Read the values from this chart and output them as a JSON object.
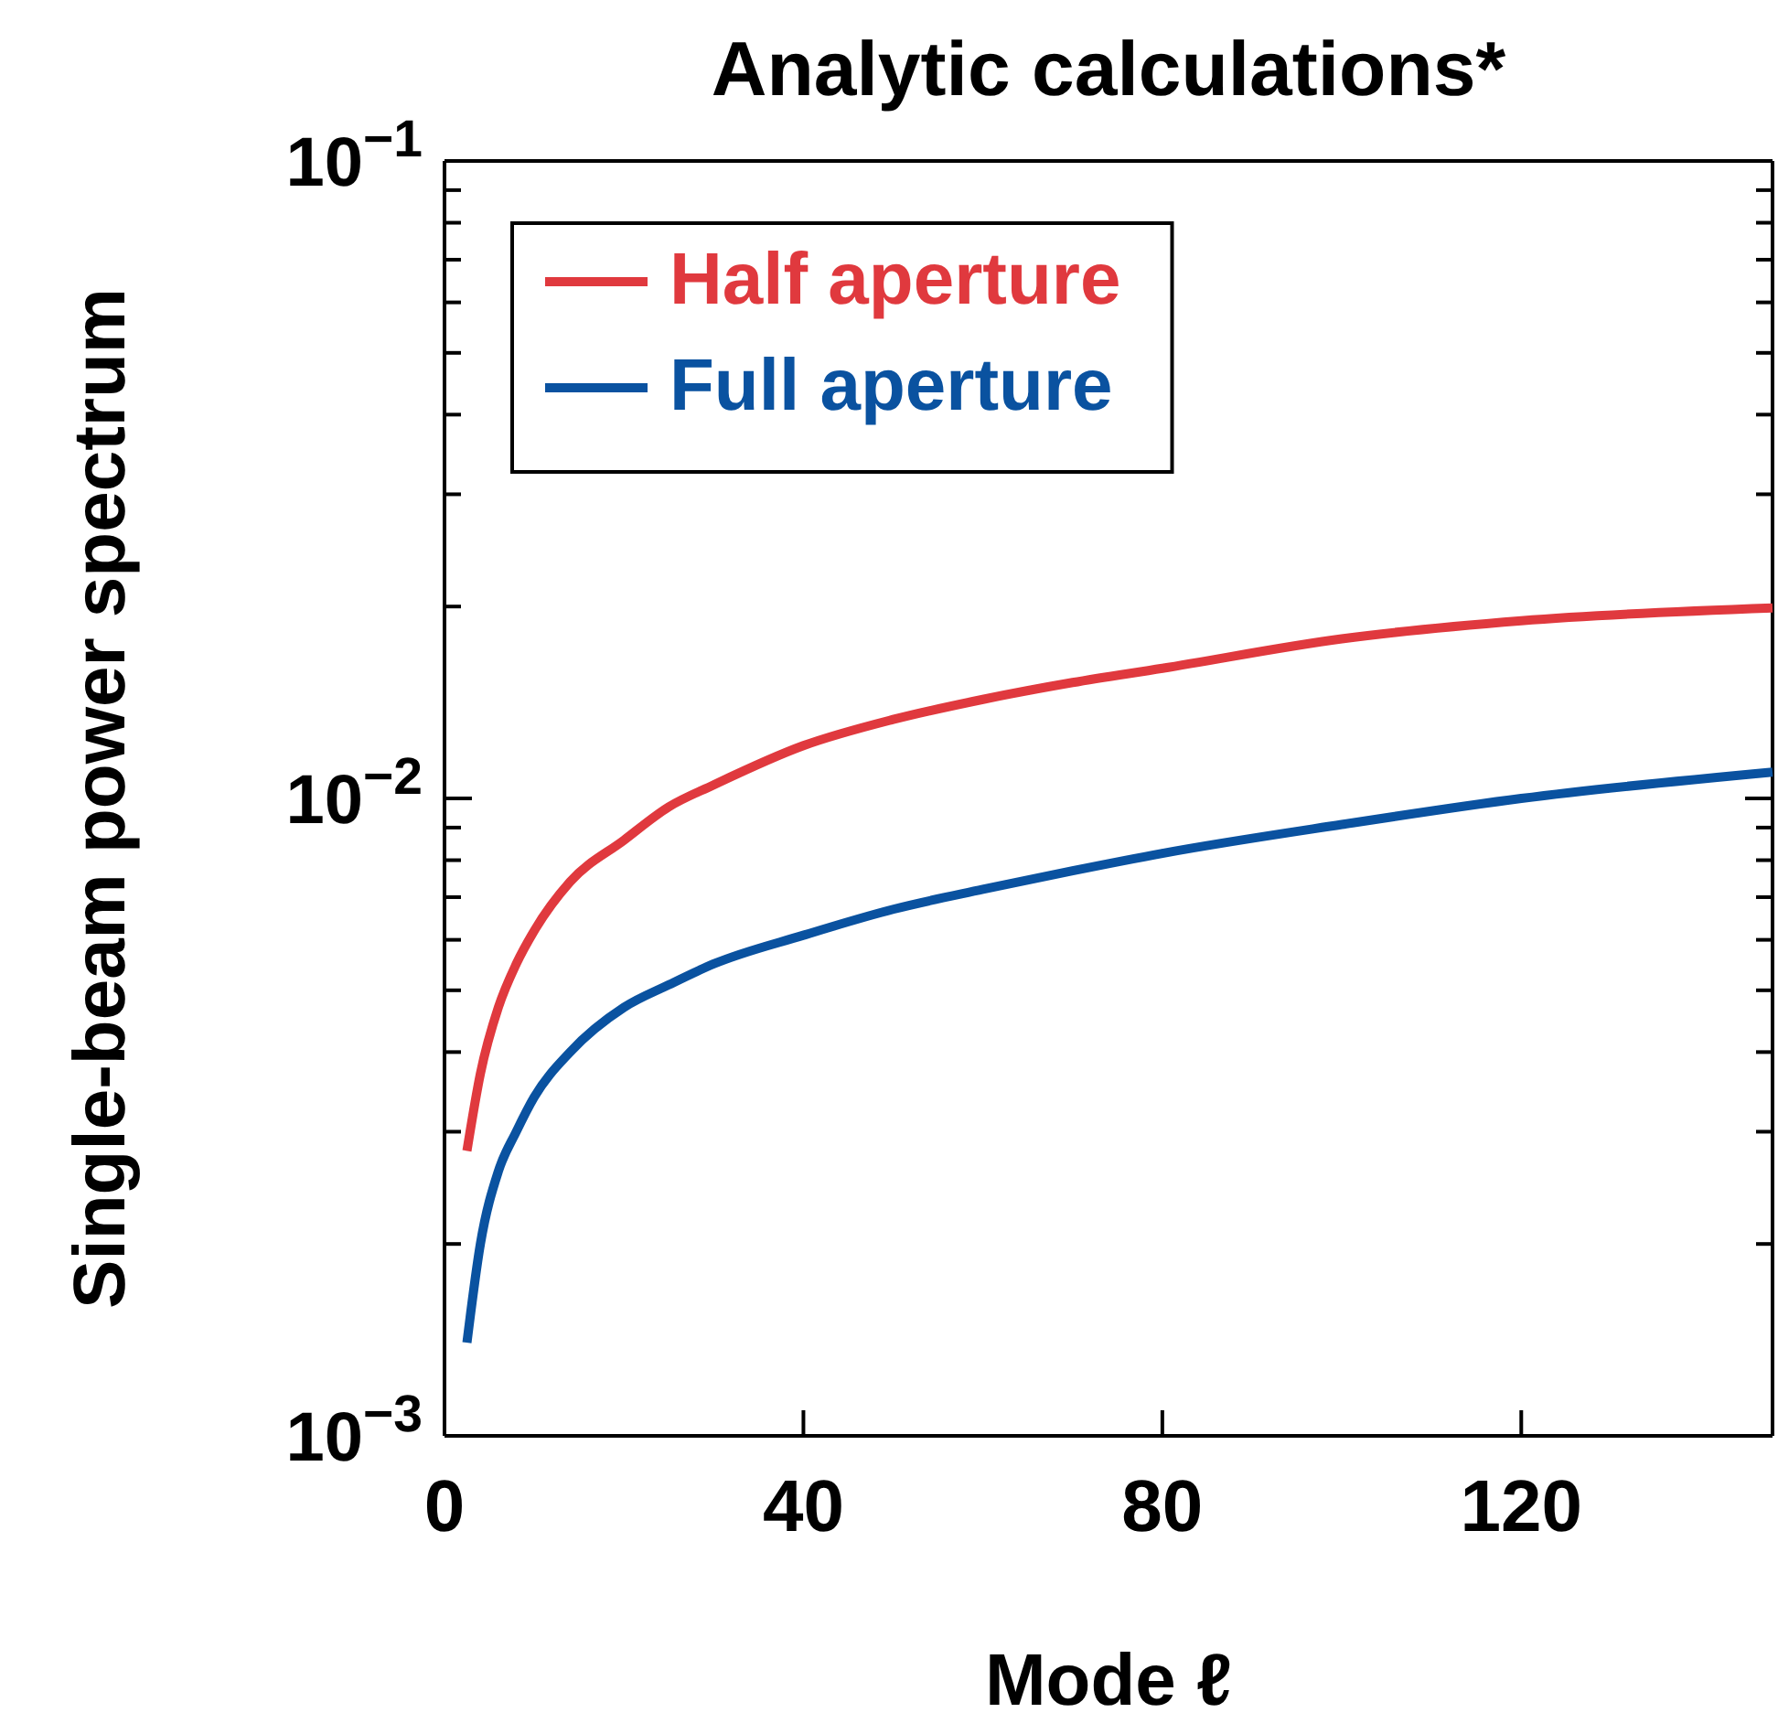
{
  "chart_data": {
    "type": "line",
    "title": "Analytic calculations*",
    "xlabel": "Mode ℓ",
    "ylabel": "Single-beam power spectrum",
    "x": [
      2.5,
      4,
      6,
      8,
      10,
      14,
      20,
      25,
      30,
      40,
      50,
      60,
      70,
      80,
      100,
      120,
      148
    ],
    "series": [
      {
        "name": "Half aperture",
        "color": "#e0393e",
        "values": [
          0.0028,
          0.0037,
          0.0047,
          0.0055,
          0.0062,
          0.0074,
          0.0086,
          0.0097,
          0.0105,
          0.0121,
          0.0133,
          0.0143,
          0.0152,
          0.016,
          0.0178,
          0.019,
          0.0199
        ]
      },
      {
        "name": "Full aperture",
        "color": "#0a52a0",
        "values": [
          0.0014,
          0.002,
          0.0026,
          0.003,
          0.0034,
          0.004,
          0.0047,
          0.0051,
          0.0055,
          0.0061,
          0.0067,
          0.0072,
          0.0077,
          0.0082,
          0.0091,
          0.01,
          0.011
        ]
      }
    ],
    "xlim": [
      0,
      148
    ],
    "xticks": [
      0,
      40,
      80,
      120
    ],
    "ylim": [
      0.001,
      0.1
    ],
    "log": true,
    "yticks": [
      {
        "value": 0.001,
        "label": "10$^{−3}$"
      },
      {
        "value": 0.002,
        "label": null
      },
      {
        "value": 0.003,
        "label": null
      },
      {
        "value": 0.004,
        "label": null
      },
      {
        "value": 0.005,
        "label": null
      },
      {
        "value": 0.006,
        "label": null
      },
      {
        "value": 0.007,
        "label": null
      },
      {
        "value": 0.008,
        "label": null
      },
      {
        "value": 0.009,
        "label": null
      },
      {
        "value": 0.01,
        "label": "10$^{−2}$"
      },
      {
        "value": 0.02,
        "label": null
      },
      {
        "value": 0.03,
        "label": null
      },
      {
        "value": 0.04,
        "label": null
      },
      {
        "value": 0.05,
        "label": null
      },
      {
        "value": 0.06,
        "label": null
      },
      {
        "value": 0.07,
        "label": null
      },
      {
        "value": 0.08,
        "label": null
      },
      {
        "value": 0.09,
        "label": null
      },
      {
        "value": 0.1,
        "label": "10$^{−1}$"
      }
    ],
    "legend": "top left",
    "line_style": "solid",
    "marker": "none",
    "grid": false
  }
}
